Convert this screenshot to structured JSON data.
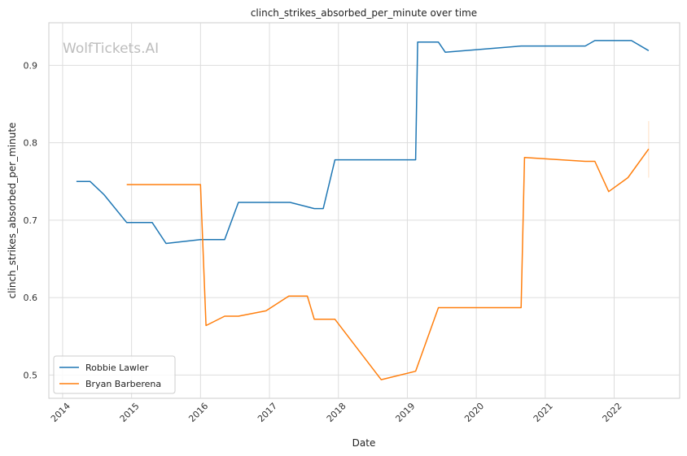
{
  "chart_data": {
    "type": "line",
    "title": "clinch_strikes_absorbed_per_minute over time",
    "xlabel": "Date",
    "ylabel": "clinch_strikes_absorbed_per_minute",
    "watermark": "WolfTickets.AI",
    "xlim": [
      2013.8,
      2022.95
    ],
    "ylim": [
      0.47,
      0.955
    ],
    "x_ticks": [
      2014,
      2015,
      2016,
      2017,
      2018,
      2019,
      2020,
      2021,
      2022
    ],
    "x_tick_labels": [
      "2014",
      "2015",
      "2016",
      "2017",
      "2018",
      "2019",
      "2020",
      "2021",
      "2022"
    ],
    "y_ticks": [
      0.5,
      0.6,
      0.7,
      0.8,
      0.9
    ],
    "y_tick_labels": [
      "0.5",
      "0.6",
      "0.7",
      "0.8",
      "0.9"
    ],
    "grid": true,
    "legend_position": "lower-left",
    "series": [
      {
        "name": "Robbie Lawler",
        "color": "#1f77b4",
        "points": [
          [
            2014.2,
            0.75
          ],
          [
            2014.4,
            0.75
          ],
          [
            2014.6,
            0.733
          ],
          [
            2014.93,
            0.697
          ],
          [
            2015.3,
            0.697
          ],
          [
            2015.5,
            0.67
          ],
          [
            2016.0,
            0.675
          ],
          [
            2016.35,
            0.675
          ],
          [
            2016.55,
            0.723
          ],
          [
            2017.3,
            0.723
          ],
          [
            2017.65,
            0.715
          ],
          [
            2017.78,
            0.715
          ],
          [
            2017.95,
            0.778
          ],
          [
            2019.12,
            0.778
          ],
          [
            2019.15,
            0.93
          ],
          [
            2019.45,
            0.93
          ],
          [
            2019.55,
            0.917
          ],
          [
            2020.65,
            0.925
          ],
          [
            2021.58,
            0.925
          ],
          [
            2021.72,
            0.932
          ],
          [
            2022.25,
            0.932
          ],
          [
            2022.5,
            0.919
          ]
        ]
      },
      {
        "name": "Bryan Barberena",
        "color": "#ff7f0e",
        "points": [
          [
            2014.93,
            0.746
          ],
          [
            2016.0,
            0.746
          ],
          [
            2016.08,
            0.564
          ],
          [
            2016.35,
            0.576
          ],
          [
            2016.55,
            0.576
          ],
          [
            2016.95,
            0.583
          ],
          [
            2017.28,
            0.602
          ],
          [
            2017.55,
            0.602
          ],
          [
            2017.65,
            0.572
          ],
          [
            2017.95,
            0.572
          ],
          [
            2018.62,
            0.494
          ],
          [
            2019.12,
            0.505
          ],
          [
            2019.45,
            0.587
          ],
          [
            2020.65,
            0.587
          ],
          [
            2020.7,
            0.781
          ],
          [
            2021.58,
            0.776
          ],
          [
            2021.72,
            0.776
          ],
          [
            2021.92,
            0.737
          ],
          [
            2022.2,
            0.755
          ],
          [
            2022.5,
            0.792
          ]
        ],
        "error_band": {
          "x": 2022.5,
          "low": 0.755,
          "high": 0.828
        }
      }
    ]
  }
}
